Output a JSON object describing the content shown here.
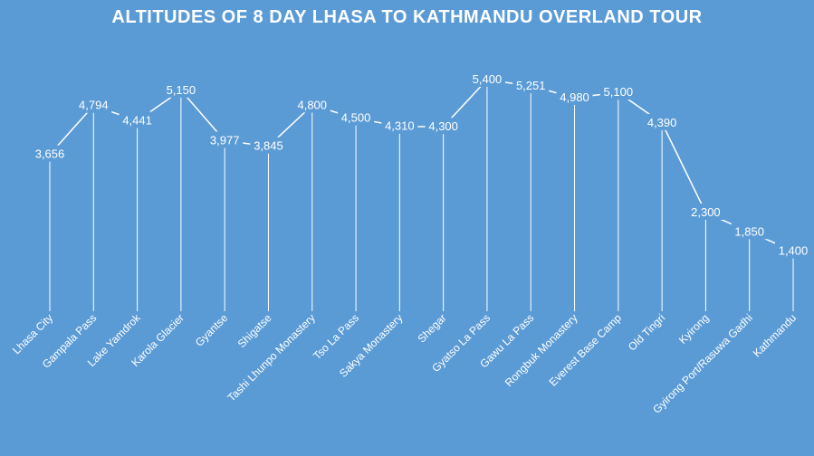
{
  "chart_data": {
    "type": "line",
    "title": "ALTITUDES OF 8 DAY LHASA TO KATHMANDU OVERLAND TOUR",
    "xlabel": "",
    "ylabel": "",
    "grid": false,
    "legend": "none",
    "categories": [
      "Lhasa City",
      "Gampala Pass",
      "Lake Yamdrok",
      "Karola Glacier",
      "Gyantse",
      "Shigatse",
      "Tashi Lhunpo Monastery",
      "Tso La Pass",
      "Sakya Monastery",
      "Shegar",
      "Gyatso La Pass",
      "Gawu La Pass",
      "Rongbuk Monastery",
      "Everest Base Camp",
      "Old Tingri",
      "Kyirong",
      "Gyirong Port/Rasuwa Gadhi",
      "Kathmandu"
    ],
    "values": [
      3656,
      4794,
      4441,
      5150,
      3977,
      3845,
      4800,
      4500,
      4310,
      4300,
      5400,
      5251,
      4980,
      5100,
      4390,
      2300,
      1850,
      1400
    ],
    "data_labels": [
      "3,656",
      "4,794",
      "4,441",
      "5,150",
      "3,977",
      "3,845",
      "4,800",
      "4,500",
      "4,310",
      "4,300",
      "5,400",
      "5,251",
      "4,980",
      "5,100",
      "4,390",
      "2,300",
      "1,850",
      "1,400"
    ],
    "ylim": [
      0,
      5400
    ],
    "colors": {
      "background": "#5b9bd5",
      "line": "#ffffff",
      "text": "#ffffff"
    }
  }
}
